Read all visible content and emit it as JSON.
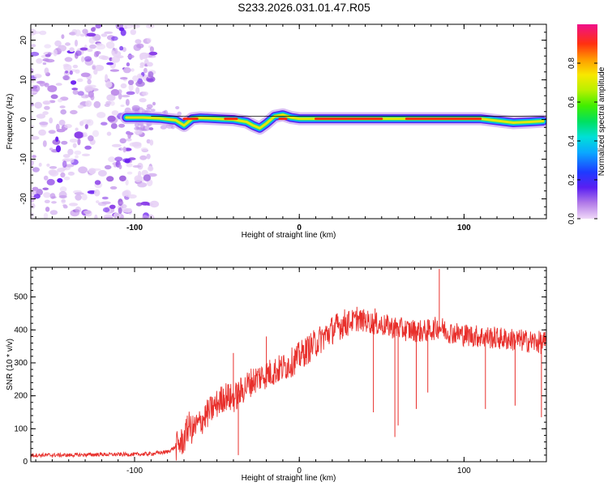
{
  "title": "S233.2026.031.01.47.R05",
  "chart_data": [
    {
      "type": "heatmap",
      "xlabel": "Height of straight line (km)",
      "ylabel": "Frequency (Hz)",
      "xlim": [
        -163,
        150
      ],
      "ylim": [
        -25,
        24
      ],
      "x_ticks": [
        "-100",
        "0",
        "100"
      ],
      "y_ticks": [
        "20",
        "10",
        "0",
        "-10",
        "-20"
      ],
      "colorbar": {
        "label": "Normalized spectral amplitude",
        "range": [
          0,
          1
        ],
        "ticks": [
          "0.0",
          "0.2",
          "0.4",
          "0.6",
          "0.8"
        ]
      },
      "ridge": {
        "x": [
          -105,
          -95,
          -85,
          -75,
          -70,
          -65,
          -60,
          -50,
          -40,
          -32,
          -28,
          -24,
          -20,
          -15,
          -10,
          -5,
          0,
          20,
          40,
          60,
          80,
          100,
          110,
          120,
          130,
          140,
          148
        ],
        "y": [
          0.5,
          0.5,
          0.3,
          -0.2,
          -1.5,
          0.2,
          0.4,
          0.2,
          0.0,
          -0.6,
          -1.5,
          -2.2,
          -1.0,
          0.8,
          1.2,
          0.5,
          0.2,
          0.2,
          0.2,
          0.2,
          0.2,
          0.2,
          0.2,
          -0.3,
          -0.8,
          -0.6,
          -0.4
        ]
      },
      "grid": false
    },
    {
      "type": "line",
      "xlabel": "Height of straight line (km)",
      "ylabel": "SNR (10 * v/v)",
      "xlim": [
        -163,
        150
      ],
      "ylim": [
        0,
        590
      ],
      "x_ticks": [
        "-100",
        "0",
        "100"
      ],
      "y_ticks": [
        "0",
        "100",
        "200",
        "300",
        "400",
        "500"
      ],
      "series": [
        {
          "color": "#e8302c",
          "x": [
            -163,
            -140,
            -120,
            -100,
            -90,
            -80,
            -75,
            -70,
            -67,
            -65,
            -60,
            -55,
            -50,
            -45,
            -40,
            -35,
            -30,
            -25,
            -20,
            -15,
            -10,
            -5,
            0,
            5,
            10,
            15,
            20,
            25,
            30,
            35,
            40,
            45,
            50,
            55,
            60,
            65,
            70,
            75,
            80,
            85,
            90,
            95,
            100,
            110,
            120,
            130,
            140,
            150
          ],
          "y": [
            20,
            20,
            22,
            22,
            24,
            30,
            45,
            65,
            110,
            95,
            120,
            150,
            175,
            200,
            190,
            215,
            240,
            255,
            265,
            275,
            285,
            300,
            320,
            340,
            360,
            380,
            400,
            415,
            425,
            430,
            428,
            420,
            415,
            410,
            405,
            400,
            398,
            395,
            400,
            410,
            395,
            390,
            385,
            380,
            375,
            370,
            365,
            360
          ]
        }
      ],
      "spikes": [
        {
          "x": -68,
          "y": 140
        },
        {
          "x": -40,
          "y": 330
        },
        {
          "x": -20,
          "y": 380
        },
        {
          "x": 35,
          "y": 470
        },
        {
          "x": 46,
          "y": 465
        },
        {
          "x": 85,
          "y": 585
        },
        {
          "x": 45,
          "y": 150
        },
        {
          "x": 58,
          "y": 75
        },
        {
          "x": 71,
          "y": 160
        },
        {
          "x": 60,
          "y": 110
        },
        {
          "x": 78,
          "y": 210
        },
        {
          "x": 113,
          "y": 160
        },
        {
          "x": 131,
          "y": 170
        },
        {
          "x": 147,
          "y": 135
        },
        {
          "x": -37,
          "y": 20
        }
      ],
      "grid": false
    }
  ]
}
